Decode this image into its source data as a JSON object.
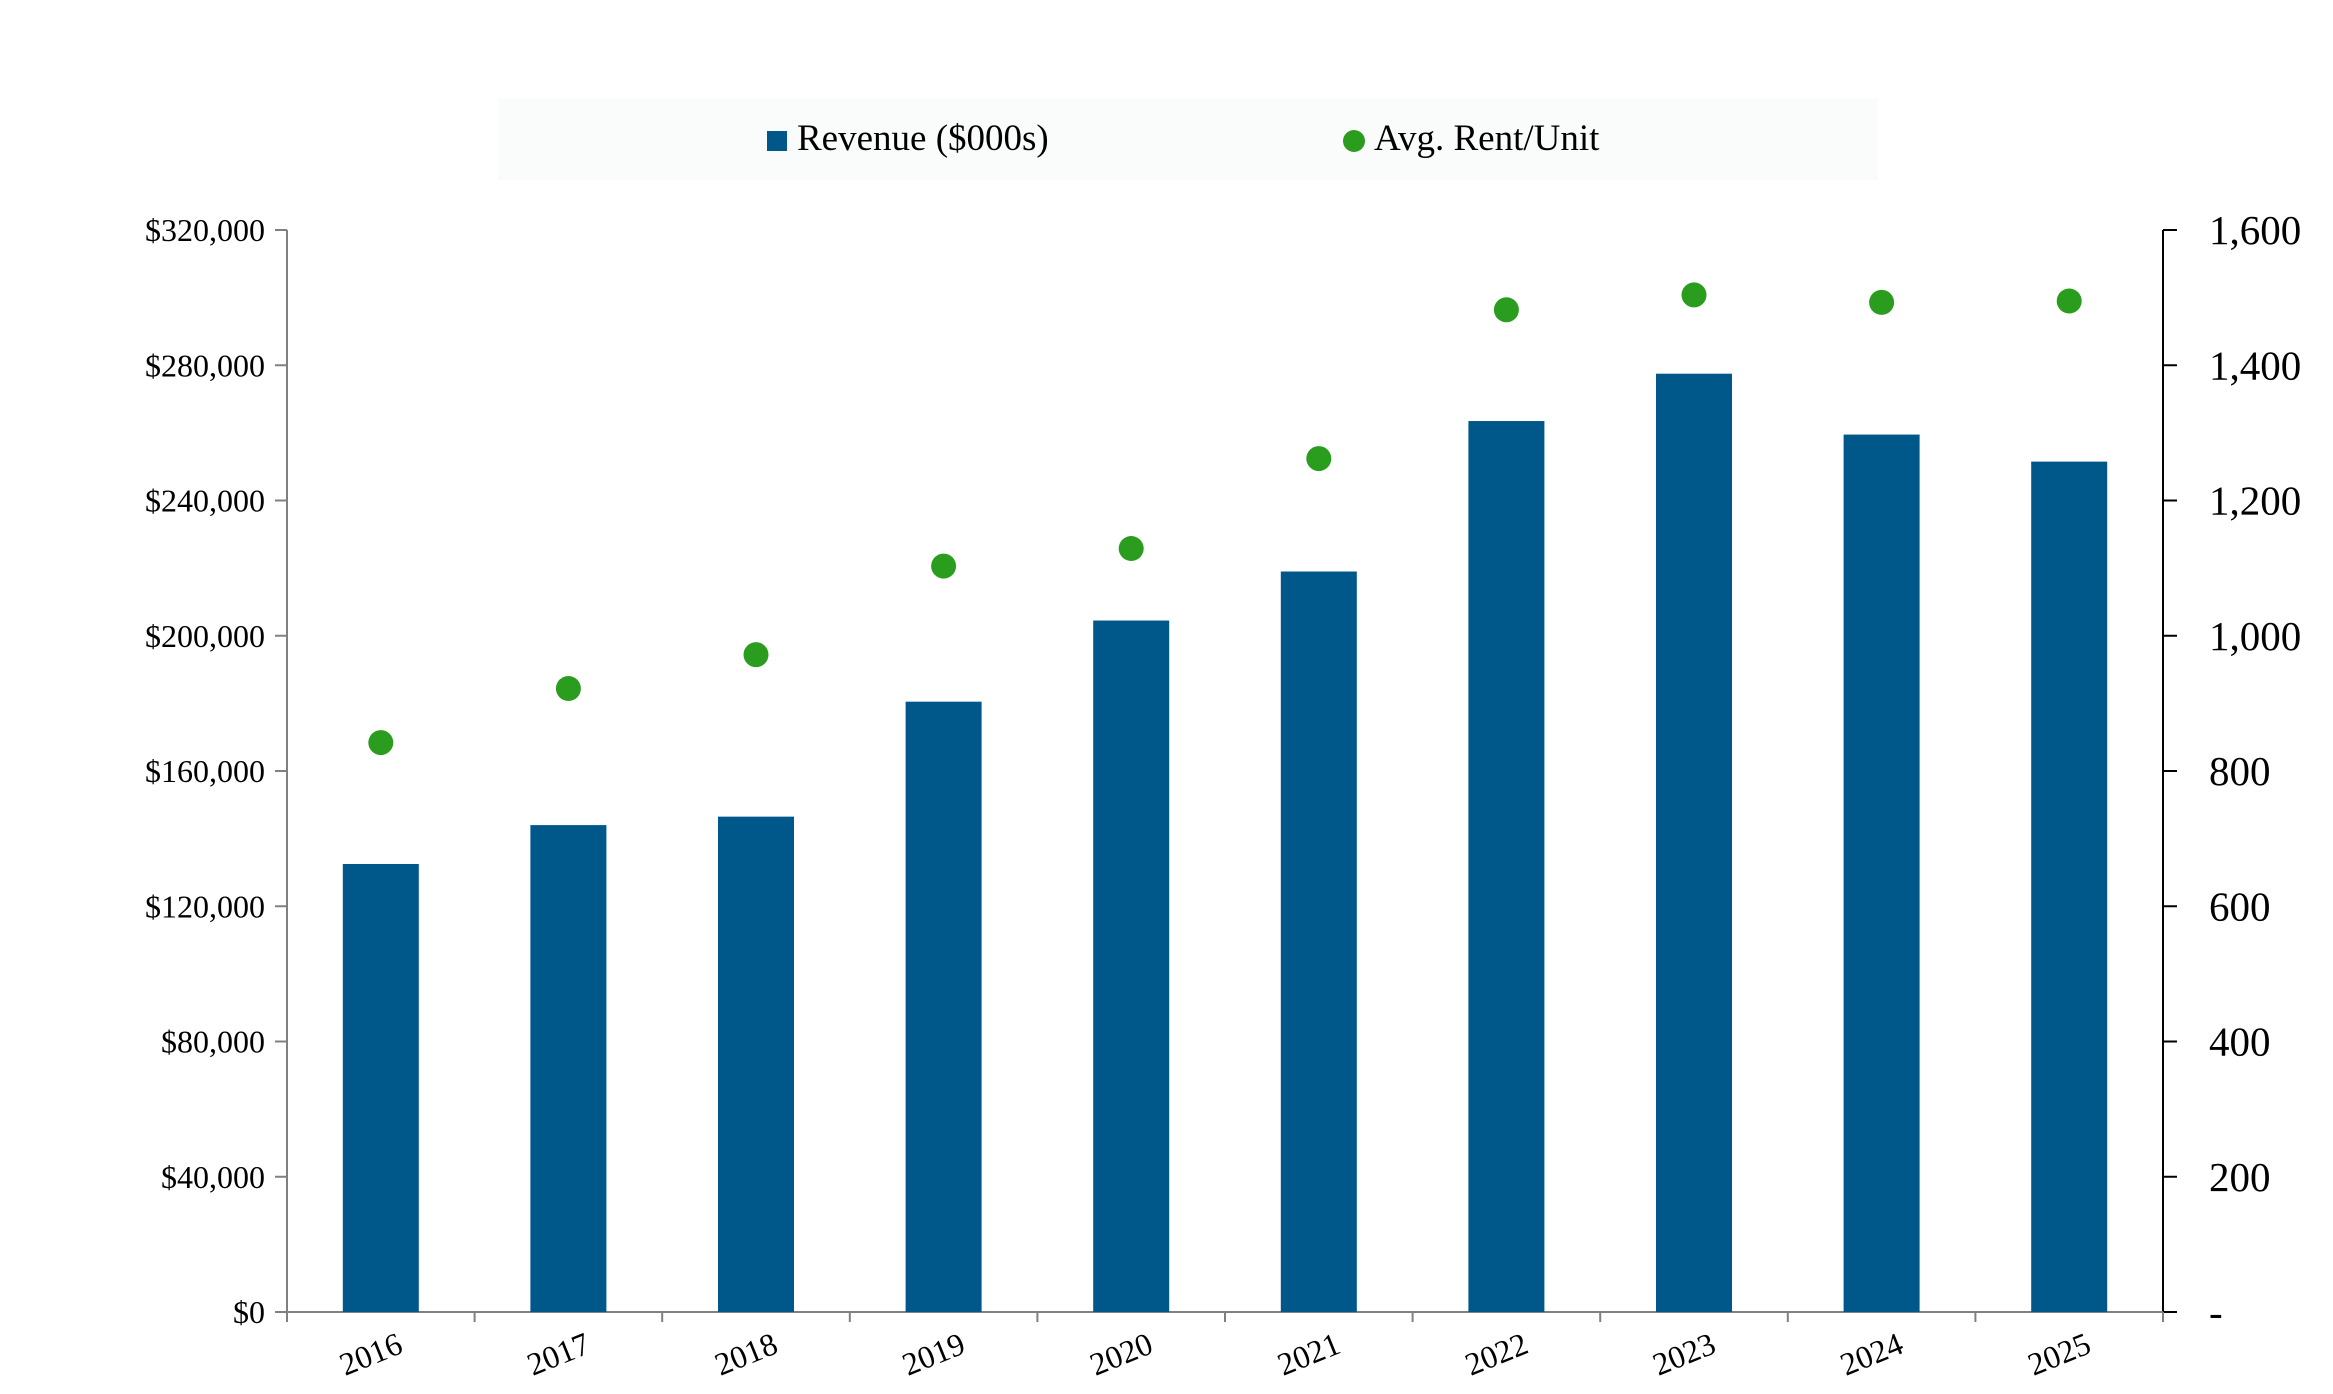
{
  "chart_data": {
    "type": "bar",
    "categories": [
      "2016",
      "2017",
      "2018",
      "2019",
      "2020",
      "2021",
      "2022",
      "2023",
      "2024",
      "2025"
    ],
    "series": [
      {
        "name": "Revenue ($000s)",
        "type": "bar",
        "axis": "left",
        "color": "#00578A",
        "values": [
          132500,
          144000,
          146500,
          180500,
          204500,
          219000,
          263500,
          277500,
          259500,
          251500
        ]
      },
      {
        "name": "Avg. Rent/Unit",
        "type": "scatter",
        "axis": "right",
        "color": "#2A9D1F",
        "values": [
          842,
          922,
          972,
          1103,
          1129,
          1262,
          1482,
          1504,
          1493,
          1495
        ]
      }
    ],
    "y_left": {
      "lim": [
        0,
        320000
      ],
      "ticks": [
        0,
        40000,
        80000,
        120000,
        160000,
        200000,
        240000,
        280000,
        320000
      ],
      "tick_labels": [
        "$0",
        "$40,000",
        "$80,000",
        "$120,000",
        "$160,000",
        "$200,000",
        "$240,000",
        "$280,000",
        "$320,000"
      ]
    },
    "y_right": {
      "lim": [
        0,
        1600
      ],
      "ticks": [
        0,
        200,
        400,
        600,
        800,
        1000,
        1200,
        1400,
        1600
      ],
      "tick_labels": [
        "-",
        "200",
        "400",
        "600",
        "800",
        "1,000",
        "1,200",
        "1,400",
        "1,600"
      ]
    },
    "legend_position": "top",
    "grid": false
  }
}
